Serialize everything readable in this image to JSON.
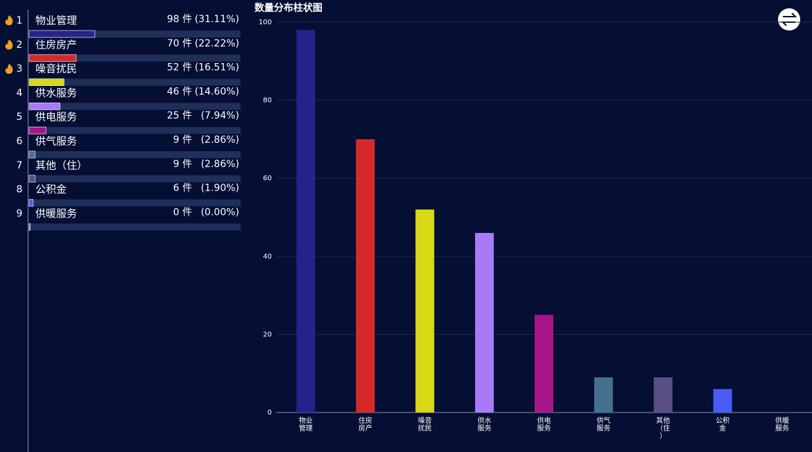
{
  "chart_data": [
    {
      "type": "ranking",
      "ranks": [
        1,
        2,
        3,
        4,
        5,
        6,
        7,
        8,
        9
      ],
      "categories": [
        "物业管理",
        "住房房产",
        "噪音扰民",
        "供水服务",
        "供电服务",
        "供气服务",
        "其他（住）",
        "公积金",
        "供暖服务"
      ],
      "values": [
        98,
        70,
        52,
        46,
        25,
        9,
        9,
        6,
        0
      ],
      "value_labels": [
        "98 件",
        "70 件",
        "52 件",
        "46 件",
        "25 件",
        "9 件",
        "9 件",
        "6 件",
        "0 件"
      ],
      "percents": [
        31.11,
        22.22,
        16.51,
        14.6,
        7.94,
        2.86,
        2.86,
        1.9,
        0.0
      ],
      "percent_labels": [
        "(31.11%)",
        "(22.22%)",
        "(16.51%)",
        "(14.60%)",
        "(7.94%)",
        "(2.86%)",
        "(2.86%)",
        "(1.90%)",
        "(0.00%)"
      ],
      "colors": [
        "#24248c",
        "#d62a2a",
        "#d8d816",
        "#a97af5",
        "#a8158a",
        "#467090",
        "#5a4f85",
        "#4a5cf5",
        "#8a8a8a"
      ]
    },
    {
      "type": "bar",
      "title": "数量分布柱状图",
      "categories": [
        "物业管理",
        "住房房产",
        "噪音扰民",
        "供水服务",
        "供电服务",
        "供气服务",
        "其他（住）",
        "公积金",
        "供暖服务"
      ],
      "values": [
        98,
        70,
        52,
        46,
        25,
        9,
        9,
        6,
        0
      ],
      "colors": [
        "#24248c",
        "#d62a2a",
        "#d8d816",
        "#a97af5",
        "#a8158a",
        "#467090",
        "#5a4f85",
        "#4a5cf5",
        "#8a8a8a"
      ],
      "ylim": [
        0,
        100
      ],
      "yticks": [
        0,
        20,
        40,
        60,
        80,
        100
      ],
      "grid": true
    }
  ]
}
